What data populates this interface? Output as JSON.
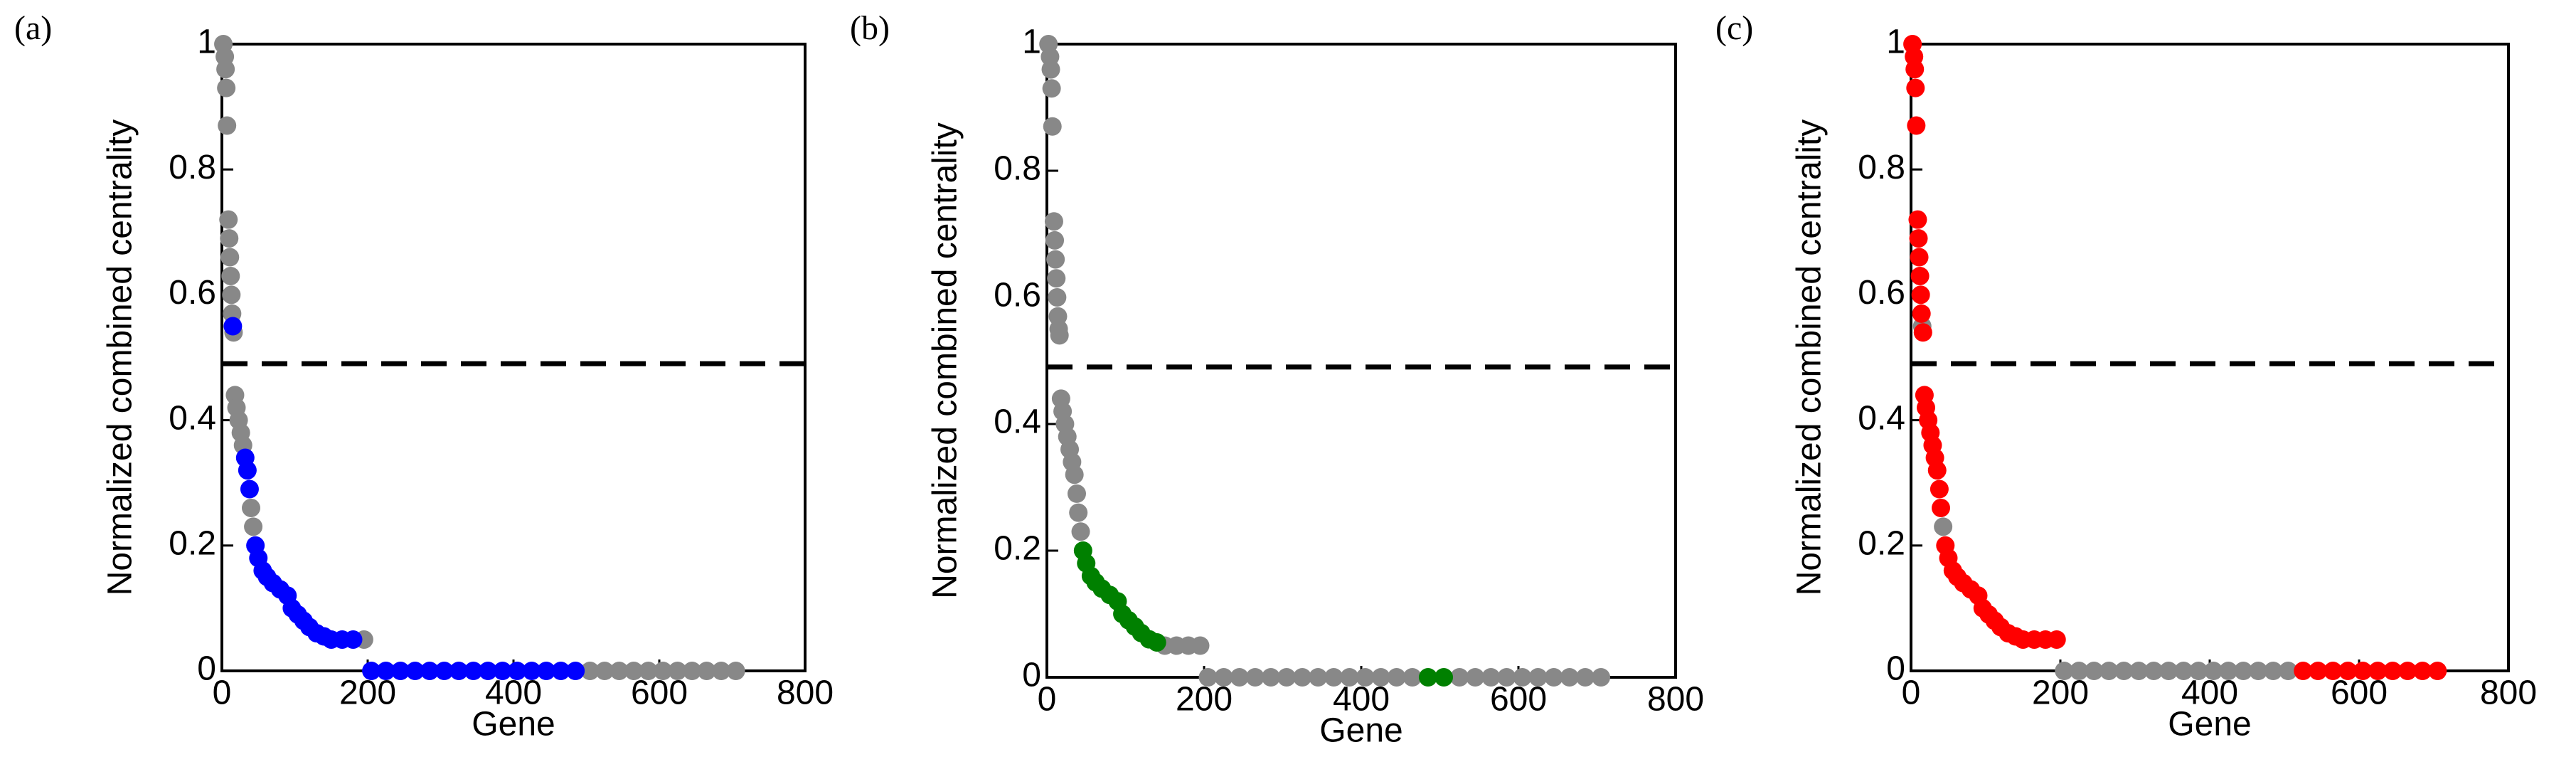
{
  "chart_data": [
    {
      "type": "scatter",
      "panel_label": "(a)",
      "xlabel": "Gene",
      "ylabel": "Normalized combined centrality",
      "xlim": [
        0,
        800
      ],
      "ylim": [
        0,
        1
      ],
      "xticks": [
        0,
        200,
        400,
        600,
        800
      ],
      "yticks": [
        0,
        0.2,
        0.4,
        0.6,
        0.8,
        1
      ],
      "threshold": 0.49,
      "series": [
        {
          "color": "#888888",
          "x": [
            2,
            4,
            5,
            6,
            7,
            9,
            10,
            11,
            12,
            13,
            14,
            16,
            18,
            20,
            23,
            26,
            29,
            40,
            43,
            195,
            505,
            525,
            545,
            565,
            585,
            605,
            625,
            645,
            665,
            685,
            705
          ],
          "values": [
            1,
            0.98,
            0.96,
            0.93,
            0.87,
            0.72,
            0.69,
            0.66,
            0.63,
            0.6,
            0.57,
            0.54,
            0.44,
            0.42,
            0.4,
            0.38,
            0.36,
            0.26,
            0.23,
            0.05,
            0,
            0,
            0,
            0,
            0,
            0,
            0,
            0,
            0,
            0,
            0
          ]
        },
        {
          "color": "#0000ff",
          "x": [
            15,
            32,
            35,
            38,
            46,
            50,
            56,
            62,
            70,
            80,
            90,
            96,
            104,
            112,
            120,
            130,
            140,
            150,
            165,
            180,
            205,
            225,
            245,
            265,
            285,
            305,
            325,
            345,
            365,
            385,
            405,
            425,
            445,
            465,
            485
          ],
          "values": [
            0.55,
            0.34,
            0.32,
            0.29,
            0.2,
            0.18,
            0.16,
            0.15,
            0.14,
            0.13,
            0.12,
            0.1,
            0.09,
            0.08,
            0.07,
            0.06,
            0.055,
            0.05,
            0.05,
            0.05,
            0,
            0,
            0,
            0,
            0,
            0,
            0,
            0,
            0,
            0,
            0,
            0,
            0,
            0,
            0
          ]
        }
      ]
    },
    {
      "type": "scatter",
      "panel_label": "(b)",
      "xlabel": "Gene",
      "ylabel": "Normalized combined centrality",
      "xlim": [
        0,
        800
      ],
      "ylim": [
        0,
        1
      ],
      "xticks": [
        0,
        200,
        400,
        600,
        800
      ],
      "yticks": [
        0,
        0.2,
        0.4,
        0.6,
        0.8,
        1
      ],
      "threshold": 0.49,
      "series": [
        {
          "color": "#888888",
          "x": [
            2,
            4,
            5,
            6,
            7,
            9,
            10,
            11,
            12,
            13,
            14,
            15,
            16,
            18,
            20,
            23,
            26,
            29,
            32,
            35,
            38,
            40,
            43,
            150,
            165,
            180,
            195,
            205,
            225,
            245,
            265,
            285,
            305,
            325,
            345,
            365,
            385,
            405,
            425,
            445,
            465,
            525,
            545,
            565,
            585,
            605,
            625,
            645,
            665,
            685,
            705
          ],
          "values": [
            1,
            0.98,
            0.96,
            0.93,
            0.87,
            0.72,
            0.69,
            0.66,
            0.63,
            0.6,
            0.57,
            0.55,
            0.54,
            0.44,
            0.42,
            0.4,
            0.38,
            0.36,
            0.34,
            0.32,
            0.29,
            0.26,
            0.23,
            0.05,
            0.05,
            0.05,
            0.05,
            0,
            0,
            0,
            0,
            0,
            0,
            0,
            0,
            0,
            0,
            0,
            0,
            0,
            0,
            0,
            0,
            0,
            0,
            0,
            0,
            0,
            0,
            0,
            0
          ]
        },
        {
          "color": "#008000",
          "x": [
            46,
            50,
            56,
            62,
            70,
            80,
            90,
            96,
            104,
            112,
            120,
            130,
            140,
            485,
            505
          ],
          "values": [
            0.2,
            0.18,
            0.16,
            0.15,
            0.14,
            0.13,
            0.12,
            0.1,
            0.09,
            0.08,
            0.07,
            0.06,
            0.055,
            0,
            0
          ]
        }
      ]
    },
    {
      "type": "scatter",
      "panel_label": "(c)",
      "xlabel": "Gene",
      "ylabel": "Normalized combined centrality",
      "xlim": [
        0,
        800
      ],
      "ylim": [
        0,
        1
      ],
      "xticks": [
        0,
        200,
        400,
        600,
        800
      ],
      "yticks": [
        0,
        0.2,
        0.4,
        0.6,
        0.8,
        1
      ],
      "threshold": 0.49,
      "series": [
        {
          "color": "#888888",
          "x": [
            15,
            43,
            205,
            225,
            245,
            265,
            285,
            305,
            325,
            345,
            365,
            385,
            405,
            425,
            445,
            465,
            485,
            505
          ],
          "values": [
            0.55,
            0.23,
            0,
            0,
            0,
            0,
            0,
            0,
            0,
            0,
            0,
            0,
            0,
            0,
            0,
            0,
            0,
            0
          ]
        },
        {
          "color": "#ff0000",
          "x": [
            2,
            4,
            5,
            6,
            7,
            9,
            10,
            11,
            12,
            13,
            14,
            16,
            18,
            20,
            23,
            26,
            29,
            32,
            35,
            38,
            40,
            46,
            50,
            56,
            62,
            70,
            80,
            90,
            96,
            104,
            112,
            120,
            130,
            140,
            150,
            165,
            180,
            195,
            525,
            545,
            565,
            585,
            605,
            625,
            645,
            665,
            685,
            705
          ],
          "values": [
            1,
            0.98,
            0.96,
            0.93,
            0.87,
            0.72,
            0.69,
            0.66,
            0.63,
            0.6,
            0.57,
            0.54,
            0.44,
            0.42,
            0.4,
            0.38,
            0.36,
            0.34,
            0.32,
            0.29,
            0.26,
            0.2,
            0.18,
            0.16,
            0.15,
            0.14,
            0.13,
            0.12,
            0.1,
            0.09,
            0.08,
            0.07,
            0.06,
            0.055,
            0.05,
            0.05,
            0.05,
            0.05,
            0,
            0,
            0,
            0,
            0,
            0,
            0,
            0,
            0,
            0
          ]
        }
      ]
    }
  ]
}
